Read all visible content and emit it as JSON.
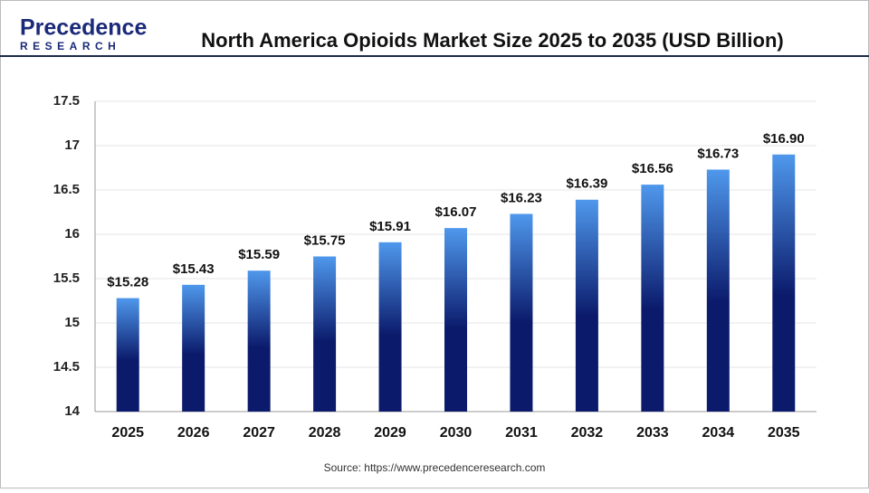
{
  "chart_data": {
    "type": "bar",
    "brand": "Precedence",
    "brand_sub": "RESEARCH",
    "title": "North America Opioids Market Size 2025 to 2035 (USD Billion)",
    "source": "Source: https://www.precedenceresearch.com",
    "categories": [
      "2025",
      "2026",
      "2027",
      "2028",
      "2029",
      "2030",
      "2031",
      "2032",
      "2033",
      "2034",
      "2035"
    ],
    "values": [
      15.28,
      15.43,
      15.59,
      15.75,
      15.91,
      16.07,
      16.23,
      16.39,
      16.56,
      16.73,
      16.9
    ],
    "value_labels": [
      "$15.28",
      "$15.43",
      "$15.59",
      "$15.75",
      "$15.91",
      "$16.07",
      "$16.23",
      "$16.39",
      "$16.56",
      "$16.73",
      "$16.90"
    ],
    "color": "#0b1a6b",
    "highlight_color": "#4f98ec",
    "ylim": [
      14,
      17.5
    ],
    "yticks": [
      14,
      14.5,
      15,
      15.5,
      16,
      16.5,
      17,
      17.5
    ],
    "grid": true
  }
}
